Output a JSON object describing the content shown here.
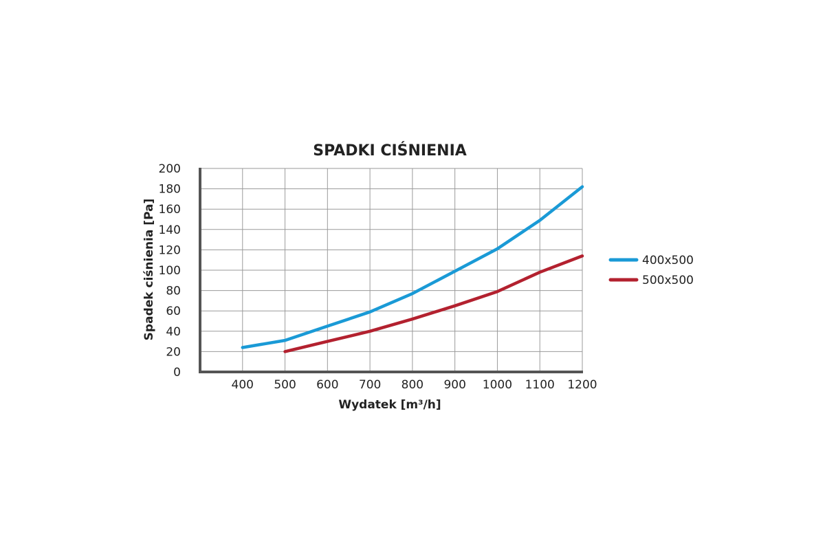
{
  "chart_data": {
    "type": "line",
    "title": "SPADKI CIŚNIENIA",
    "xlabel": "Wydatek [m³/h]",
    "ylabel": "Spadek ciśnienia [Pa]",
    "x_ticks": [
      "400",
      "500",
      "600",
      "700",
      "800",
      "900",
      "1000",
      "1100",
      "1200"
    ],
    "y_ticks": [
      "0",
      "20",
      "40",
      "60",
      "80",
      "100",
      "120",
      "140",
      "160",
      "180",
      "200"
    ],
    "xlim": [
      300,
      1200
    ],
    "ylim": [
      0,
      200
    ],
    "grid": true,
    "legend_position": "right",
    "series": [
      {
        "name": "400x500",
        "color": "#1a9ad6",
        "x": [
          400,
          500,
          600,
          700,
          800,
          900,
          1000,
          1100,
          1200
        ],
        "y": [
          24,
          31,
          45,
          59,
          77,
          99,
          121,
          149,
          182
        ]
      },
      {
        "name": "500x500",
        "color": "#b3212f",
        "x": [
          500,
          600,
          700,
          800,
          900,
          1000,
          1100,
          1200
        ],
        "y": [
          20,
          30,
          40,
          52,
          65,
          79,
          98,
          114
        ]
      }
    ]
  }
}
